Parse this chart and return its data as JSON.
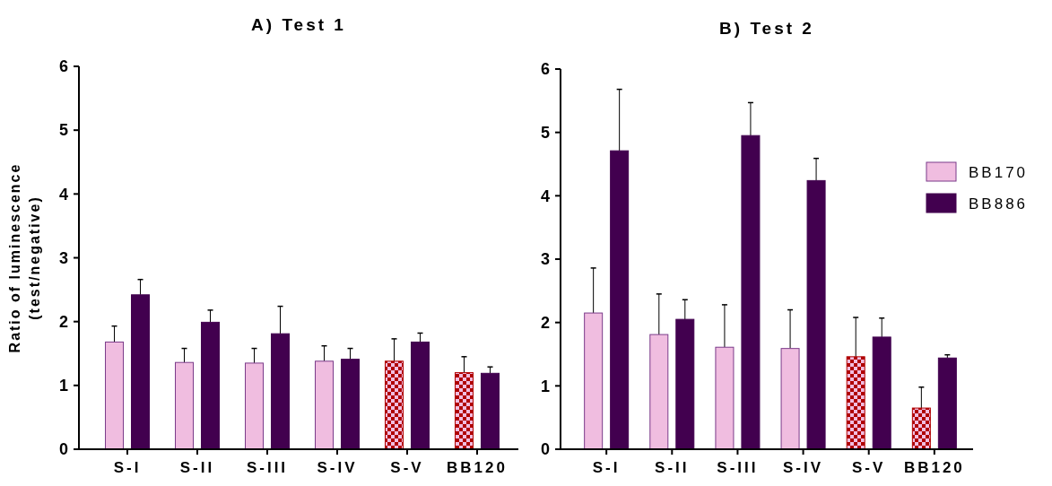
{
  "chart_data": [
    {
      "type": "bar",
      "title": "A) Test 1",
      "ylabel": "Ratio of luminescence\n(test/negative)",
      "categories": [
        "S-I",
        "S-II",
        "S-III",
        "S-IV",
        "S-V",
        "BB120"
      ],
      "ylim": [
        0,
        6
      ],
      "yticks": [
        0,
        1,
        2,
        3,
        4,
        5,
        6
      ],
      "grid": false,
      "series": [
        {
          "color": "#f0bde0",
          "colors": [
            "#f0bde0",
            "#f0bde0",
            "#f0bde0",
            "#f0bde0",
            "#b00000",
            "#b00000"
          ],
          "values": [
            1.68,
            1.36,
            1.35,
            1.38,
            1.38,
            1.2
          ],
          "errors": [
            [
              1.68,
              1.93
            ],
            [
              1.36,
              1.58
            ],
            [
              1.35,
              1.58
            ],
            [
              1.38,
              1.62
            ],
            [
              1.38,
              1.73
            ],
            [
              1.2,
              1.45
            ]
          ]
        },
        {
          "color": "#42004f",
          "values": [
            2.42,
            1.99,
            1.81,
            1.41,
            1.68,
            1.19
          ],
          "errors": [
            [
              2.42,
              2.66
            ],
            [
              1.99,
              2.18
            ],
            [
              1.81,
              2.24
            ],
            [
              1.41,
              1.58
            ],
            [
              1.68,
              1.82
            ],
            [
              1.19,
              1.29
            ]
          ]
        }
      ]
    },
    {
      "type": "bar",
      "title": "B) Test 2",
      "categories": [
        "S-I",
        "S-II",
        "S-III",
        "S-IV",
        "S-V",
        "BB120"
      ],
      "ylim": [
        0,
        6
      ],
      "yticks": [
        0,
        1,
        2,
        3,
        4,
        5,
        6
      ],
      "grid": false,
      "legend": "right",
      "series": [
        {
          "name": "BB170",
          "color": "#f0bde0",
          "colors": [
            "#f0bde0",
            "#f0bde0",
            "#f0bde0",
            "#f0bde0",
            "#b00000",
            "#b00000"
          ],
          "values": [
            2.15,
            1.81,
            1.61,
            1.59,
            1.46,
            0.65
          ],
          "errors": [
            [
              2.15,
              2.86
            ],
            [
              1.81,
              2.45
            ],
            [
              1.61,
              2.28
            ],
            [
              1.59,
              2.2
            ],
            [
              1.46,
              2.08
            ],
            [
              0.65,
              0.98
            ]
          ]
        },
        {
          "name": "BB886",
          "color": "#42004f",
          "values": [
            4.71,
            2.05,
            4.95,
            4.24,
            1.77,
            1.44
          ],
          "errors": [
            [
              4.71,
              5.68
            ],
            [
              2.05,
              2.36
            ],
            [
              4.95,
              5.47
            ],
            [
              4.24,
              4.59
            ],
            [
              1.77,
              2.07
            ],
            [
              1.44,
              1.49
            ]
          ]
        }
      ]
    }
  ]
}
